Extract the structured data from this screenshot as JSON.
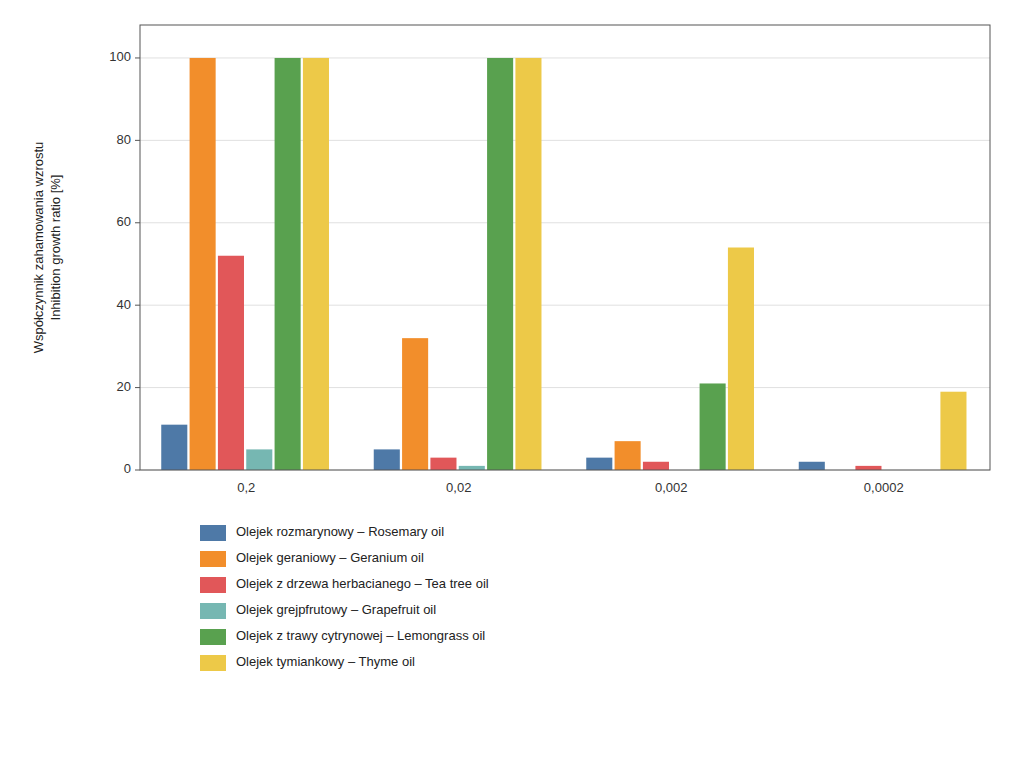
{
  "chart_data": {
    "type": "bar",
    "categories": [
      "0,2",
      "0,02",
      "0,002",
      "0,0002"
    ],
    "series": [
      {
        "name": "Olejek rozmarynowy – Rosemary oil",
        "values": [
          11,
          5,
          3,
          2
        ]
      },
      {
        "name": "Olejek geraniowy – Geranium oil",
        "values": [
          100,
          32,
          7,
          0
        ]
      },
      {
        "name": "Olejek z drzewa herbacianego – Tea tree oil",
        "values": [
          52,
          3,
          2,
          1
        ]
      },
      {
        "name": "Olejek grejpfrutowy – Grapefruit oil",
        "values": [
          5,
          1,
          0,
          0
        ]
      },
      {
        "name": "Olejek z trawy cytrynowej – Lemongrass oil",
        "values": [
          100,
          100,
          21,
          0
        ]
      },
      {
        "name": "Olejek tymiankowy – Thyme oil",
        "values": [
          100,
          100,
          54,
          19
        ]
      }
    ],
    "y_label": [
      "Współczynnik zahamowania wzrostu",
      "Inhibition growth ratio [%]"
    ],
    "ylim": [
      0,
      108
    ],
    "yticks": [
      0,
      20,
      40,
      60,
      80,
      100
    ],
    "grid": true,
    "legend": "bottom"
  }
}
